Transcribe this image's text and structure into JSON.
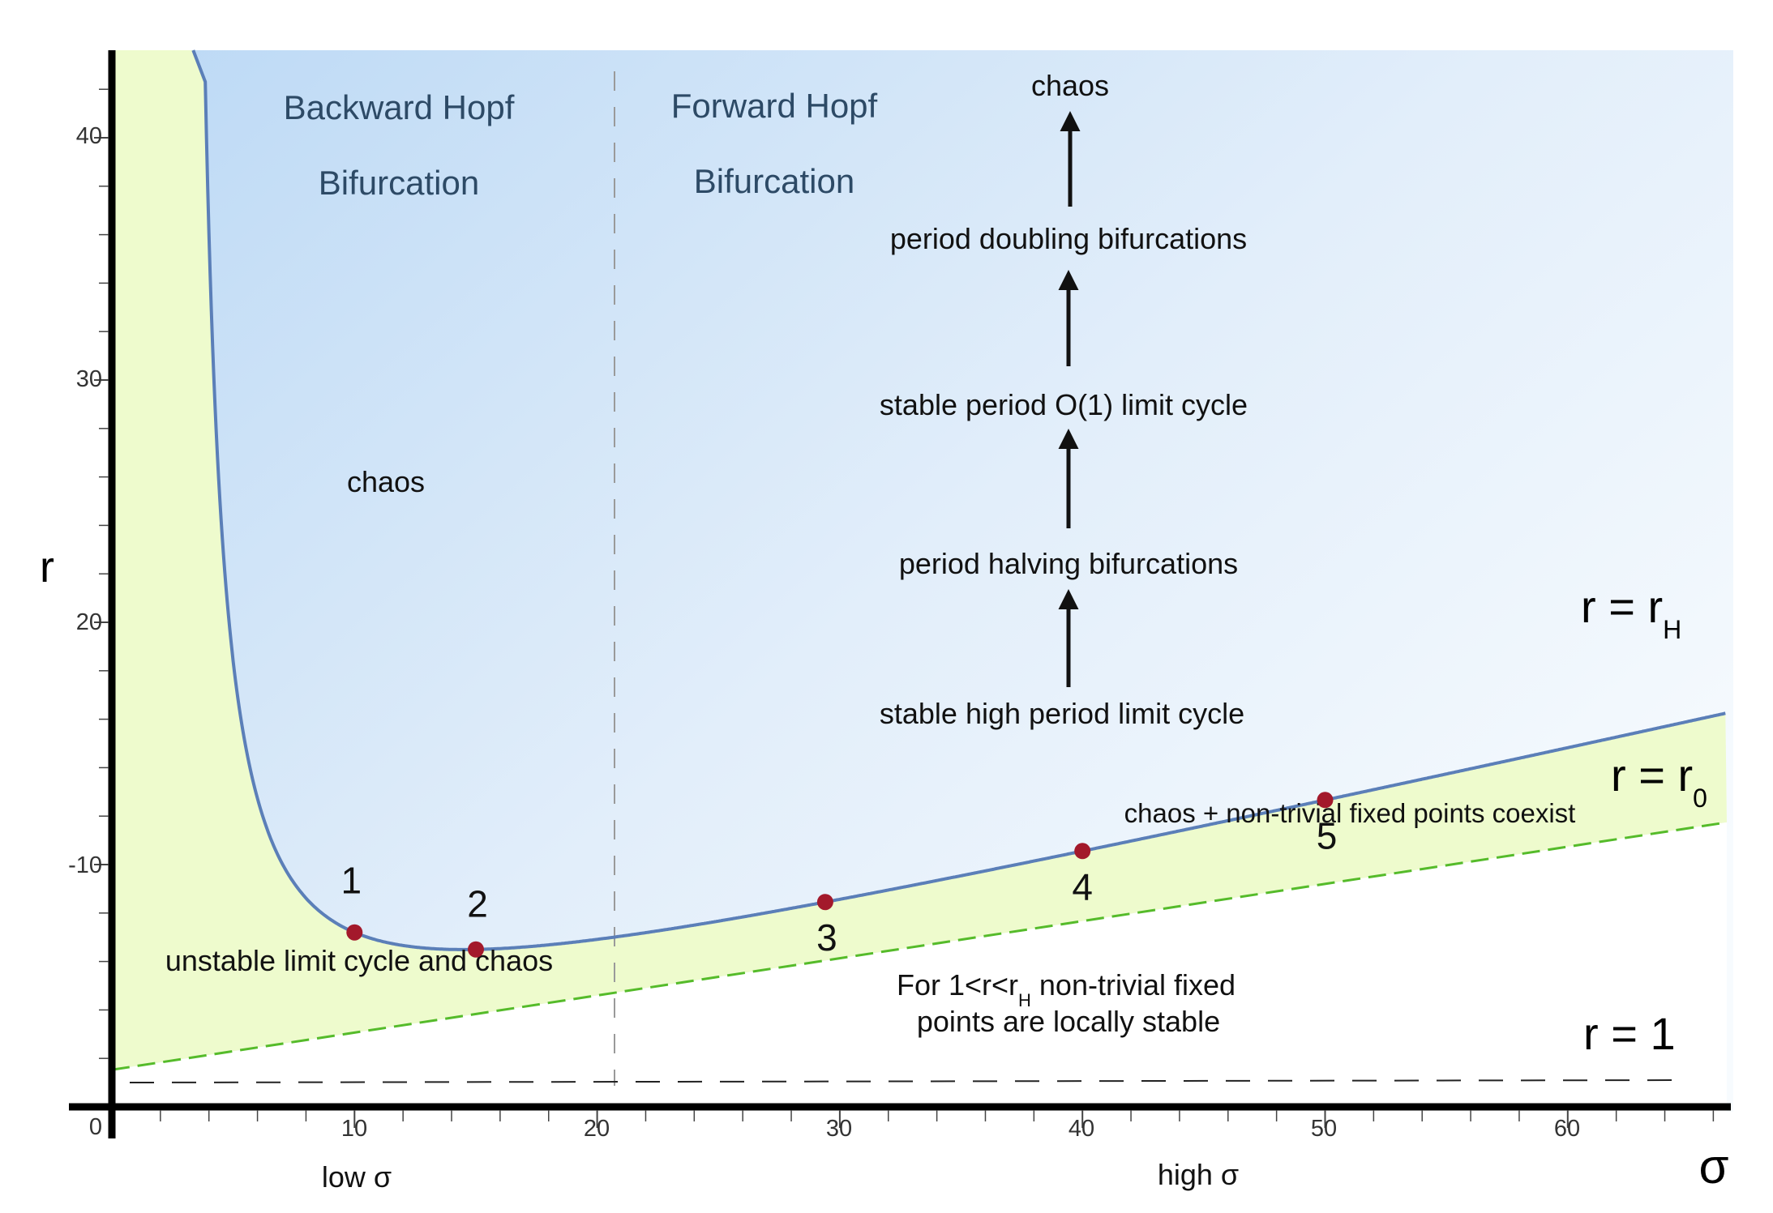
{
  "axes": {
    "y_label": "r",
    "x_label": "σ",
    "x_ticks": [
      "0",
      "10",
      "20",
      "30",
      "40",
      "50",
      "60"
    ],
    "y_ticks": [
      "40",
      "30",
      "20",
      "-10"
    ],
    "x_sub_labels": [
      "low σ",
      "high σ"
    ],
    "xlim": [
      0,
      66
    ],
    "ylim": [
      0,
      43
    ]
  },
  "regions": {
    "backward_line1": "Backward Hopf",
    "backward_line2": "Bifurcation",
    "forward_line1": "Forward Hopf",
    "forward_line2": "Bifurcation",
    "chaos_left": "chaos",
    "unstable": "unstable limit cycle and chaos",
    "coexist": "chaos + non-trivial fixed points coexist",
    "stable_line1_a": "For 1<r<r",
    "stable_line1_sub": "H",
    "stable_line1_b": " non-trivial fixed",
    "stable_line2": "points are locally stable"
  },
  "sequence": [
    "chaos",
    "period doubling bifurcations",
    "stable period O(1) limit cycle",
    "period halving bifurcations",
    "stable high period limit cycle"
  ],
  "curves": {
    "rH_main": "r = r",
    "rH_sub": "H",
    "r0_main": "r = r",
    "r0_sub": "0",
    "r1": "r = 1"
  },
  "points": [
    {
      "label": "1",
      "sigma": 10,
      "r": 7.2
    },
    {
      "label": "2",
      "sigma": 15,
      "r": 7.8
    },
    {
      "label": "3",
      "sigma": 29.4,
      "r": 10.7
    },
    {
      "label": "4",
      "sigma": 40,
      "r": 13.1
    },
    {
      "label": "5",
      "sigma": 50,
      "r": 15.4
    }
  ],
  "colors": {
    "blue_region": "#cfe4f8",
    "green_region": "#eefbcd",
    "hopf_curve": "#5b7fb8",
    "r0_line": "#55bb2a",
    "points": "#a3192b"
  }
}
